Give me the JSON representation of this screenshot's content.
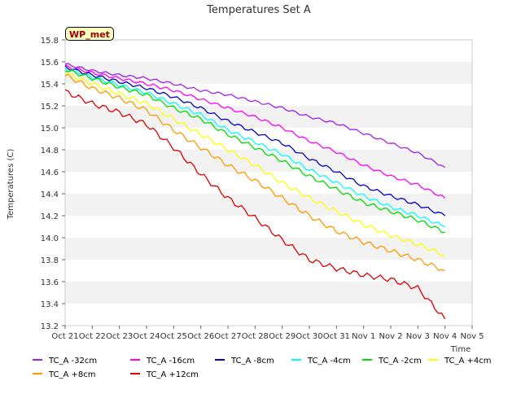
{
  "chart_data": {
    "type": "line",
    "title": "Temperatures Set A",
    "xlabel": "Time",
    "ylabel": "Temperatures (C)",
    "badge": "WP_met",
    "xlim": [
      "Oct 21",
      "Nov 5"
    ],
    "ylim": [
      13.2,
      15.8
    ],
    "x_ticks": [
      "Oct 21",
      "Oct 22",
      "Oct 23",
      "Oct 24",
      "Oct 25",
      "Oct 26",
      "Oct 27",
      "Oct 28",
      "Oct 29",
      "Oct 30",
      "Oct 31",
      "Nov 1",
      "Nov 2",
      "Nov 3",
      "Nov 4",
      "Nov 5"
    ],
    "y_ticks": [
      "13.2",
      "13.4",
      "13.6",
      "13.8",
      "14.0",
      "14.2",
      "14.4",
      "14.6",
      "14.8",
      "15.0",
      "15.2",
      "15.4",
      "15.6",
      "15.8"
    ],
    "grid": "horizontal bands",
    "legend_position": "bottom",
    "x": [
      "Oct 21",
      "Oct 22",
      "Oct 23",
      "Oct 24",
      "Oct 25",
      "Oct 26",
      "Oct 27",
      "Oct 28",
      "Oct 29",
      "Oct 30",
      "Oct 31",
      "Nov 1",
      "Nov 2",
      "Nov 3",
      "Nov 4"
    ],
    "series": [
      {
        "name": "TC_A -32cm",
        "color": "#a020f0",
        "values": [
          15.58,
          15.52,
          15.48,
          15.45,
          15.4,
          15.34,
          15.3,
          15.24,
          15.18,
          15.1,
          15.04,
          14.95,
          14.86,
          14.77,
          14.64
        ]
      },
      {
        "name": "TC_A -16cm",
        "color": "#ff00ff",
        "values": [
          15.56,
          15.5,
          15.45,
          15.4,
          15.34,
          15.26,
          15.18,
          15.1,
          15.0,
          14.88,
          14.78,
          14.66,
          14.56,
          14.48,
          14.36
        ]
      },
      {
        "name": "TC_A -8cm",
        "color": "#0000cc",
        "values": [
          15.55,
          15.48,
          15.42,
          15.36,
          15.28,
          15.18,
          15.06,
          14.96,
          14.86,
          14.72,
          14.6,
          14.47,
          14.38,
          14.3,
          14.2
        ]
      },
      {
        "name": "TC_A -4cm",
        "color": "#00ffff",
        "values": [
          15.54,
          15.46,
          15.39,
          15.32,
          15.22,
          15.12,
          14.98,
          14.87,
          14.76,
          14.62,
          14.5,
          14.38,
          14.28,
          14.2,
          14.1
        ]
      },
      {
        "name": "TC_A -2cm",
        "color": "#00dd00",
        "values": [
          15.53,
          15.45,
          15.37,
          15.3,
          15.18,
          15.08,
          14.94,
          14.82,
          14.7,
          14.56,
          14.44,
          14.32,
          14.24,
          14.16,
          14.05
        ]
      },
      {
        "name": "TC_A +4cm",
        "color": "#ffff00",
        "values": [
          15.5,
          15.4,
          15.31,
          15.22,
          15.08,
          14.94,
          14.8,
          14.66,
          14.5,
          14.36,
          14.24,
          14.12,
          14.02,
          13.94,
          13.84
        ]
      },
      {
        "name": "TC_A +8cm",
        "color": "#ff9900",
        "values": [
          15.48,
          15.36,
          15.27,
          15.16,
          14.98,
          14.82,
          14.66,
          14.52,
          14.36,
          14.2,
          14.06,
          13.96,
          13.88,
          13.8,
          13.7
        ]
      },
      {
        "name": "TC_A +12cm",
        "color": "#dd0000",
        "values": [
          15.33,
          15.22,
          15.14,
          15.03,
          14.82,
          14.58,
          14.36,
          14.18,
          13.98,
          13.8,
          13.72,
          13.66,
          13.62,
          13.54,
          13.26
        ]
      }
    ]
  }
}
